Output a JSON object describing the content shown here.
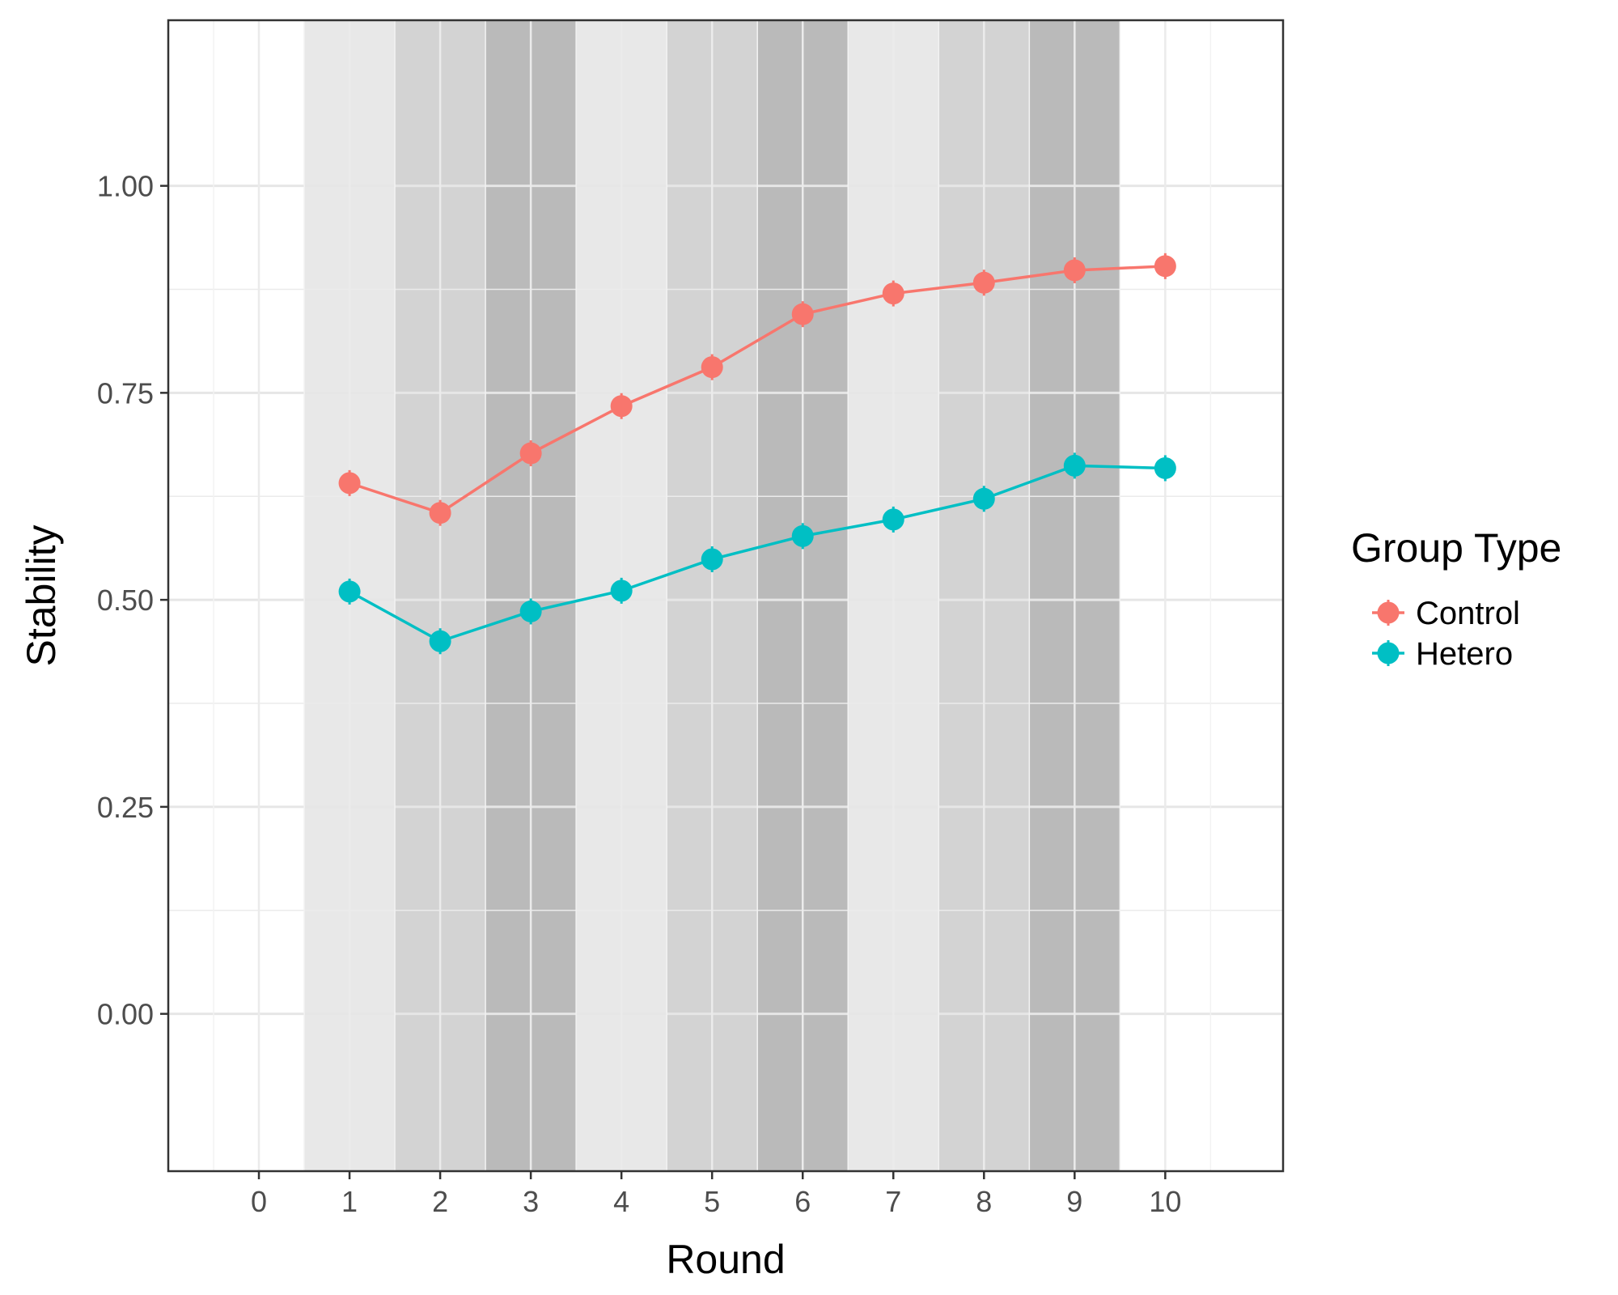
{
  "chart_data": {
    "type": "line",
    "title": "",
    "xlabel": "Round",
    "ylabel": "Stability",
    "xlim": [
      -1,
      11.3
    ],
    "ylim": [
      -0.19,
      1.2
    ],
    "x_ticks": [
      0,
      1,
      2,
      3,
      4,
      5,
      6,
      7,
      8,
      9,
      10
    ],
    "y_ticks": [
      0.0,
      0.25,
      0.5,
      0.75,
      1.0
    ],
    "y_tick_labels": [
      "0.00",
      "0.25",
      "0.50",
      "0.75",
      "1.00"
    ],
    "grid": true,
    "legend": {
      "title": "Group Type",
      "placement": "right"
    },
    "background_bands": [
      {
        "round": 1,
        "shade": "#e8e8e8"
      },
      {
        "round": 2,
        "shade": "#d3d3d3"
      },
      {
        "round": 3,
        "shade": "#bababa"
      },
      {
        "round": 4,
        "shade": "#e8e8e8"
      },
      {
        "round": 5,
        "shade": "#d3d3d3"
      },
      {
        "round": 6,
        "shade": "#bababa"
      },
      {
        "round": 7,
        "shade": "#e8e8e8"
      },
      {
        "round": 8,
        "shade": "#d3d3d3"
      },
      {
        "round": 9,
        "shade": "#bababa"
      }
    ],
    "x": [
      1,
      2,
      3,
      4,
      5,
      6,
      7,
      8,
      9,
      10
    ],
    "series": [
      {
        "name": "Control",
        "color": "#F8766D",
        "values": [
          0.641,
          0.605,
          0.677,
          0.734,
          0.781,
          0.845,
          0.87,
          0.883,
          0.898,
          0.903
        ]
      },
      {
        "name": "Hetero",
        "color": "#00BFC4",
        "values": [
          0.51,
          0.45,
          0.486,
          0.511,
          0.549,
          0.577,
          0.597,
          0.622,
          0.662,
          0.659
        ]
      }
    ]
  }
}
